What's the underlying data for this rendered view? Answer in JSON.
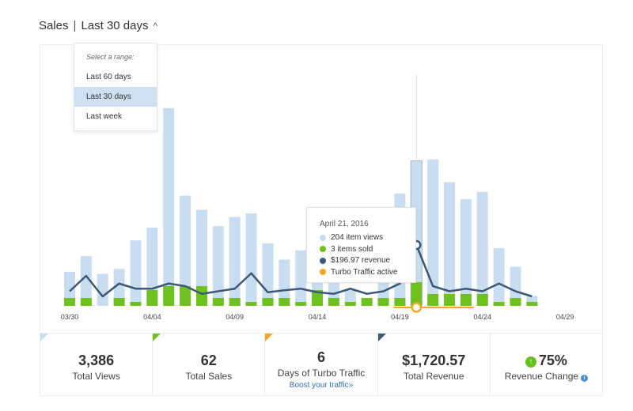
{
  "header": {
    "title": "Sales",
    "range_label": "Last 30 days"
  },
  "range_dropdown": {
    "prompt": "Select a range:",
    "options": [
      "Last 60 days",
      "Last 30 days",
      "Last week"
    ],
    "selected": "Last 30 days"
  },
  "tooltip": {
    "date": "April 21, 2016",
    "rows": [
      {
        "text": "204 item views",
        "color": "#c9ddf1"
      },
      {
        "text": "3 items sold",
        "color": "#6ec11e"
      },
      {
        "text": "$196.97 revenue",
        "color": "#3d5976"
      },
      {
        "text": "Turbo Traffic active",
        "color": "#f5a623"
      }
    ]
  },
  "chart_data": {
    "type": "bar",
    "x_tick_labels": [
      "03/30",
      "04/04",
      "04/09",
      "04/14",
      "04/19",
      "04/24",
      "04/29"
    ],
    "views": [
      48,
      70,
      45,
      52,
      92,
      110,
      278,
      155,
      135,
      112,
      125,
      130,
      88,
      65,
      78,
      60,
      35,
      22,
      10,
      45,
      158,
      204,
      206,
      174,
      150,
      160,
      81,
      55,
      14
    ],
    "sold": [
      1,
      1,
      0,
      1,
      0.5,
      2,
      2.5,
      2.5,
      2.5,
      1,
      1,
      0.5,
      1,
      1,
      0.5,
      2,
      1,
      0.5,
      1,
      1,
      1,
      3,
      1.5,
      1.5,
      1.5,
      1.5,
      0.5,
      1,
      0.5
    ],
    "revenue": [
      1,
      4,
      0,
      2.5,
      1.5,
      1.5,
      2.5,
      2,
      0.5,
      1,
      1.5,
      4.5,
      0.8,
      1.2,
      1.5,
      0.8,
      0.5,
      1.5,
      0.5,
      1,
      2.5,
      10,
      2,
      1,
      1.5,
      1,
      2.5,
      1,
      0
    ],
    "highlight_index": 21,
    "turbo_traffic_range": [
      20,
      24
    ],
    "series": [
      {
        "name": "item views",
        "color": "#c9ddf1"
      },
      {
        "name": "items sold",
        "color": "#6ec11e"
      },
      {
        "name": "revenue",
        "color": "#3d5976"
      },
      {
        "name": "Turbo Traffic active",
        "color": "#f5a623"
      }
    ],
    "grid": false
  },
  "stats": [
    {
      "value": "3,386",
      "label": "Total Views",
      "corner_color": "#c9ddf1"
    },
    {
      "value": "62",
      "label": "Total Sales",
      "corner_color": "#6ec11e"
    },
    {
      "value": "6",
      "label": "Days of Turbo Traffic",
      "link": "Boost your traffic»",
      "corner_color": "#f5a623"
    },
    {
      "value": "$1,720.57",
      "label": "Total Revenue",
      "corner_color": "#3d5976"
    },
    {
      "value": "75%",
      "label": "Revenue Change",
      "icon": "arrow-up-icon",
      "info_icon": "info-icon"
    }
  ]
}
